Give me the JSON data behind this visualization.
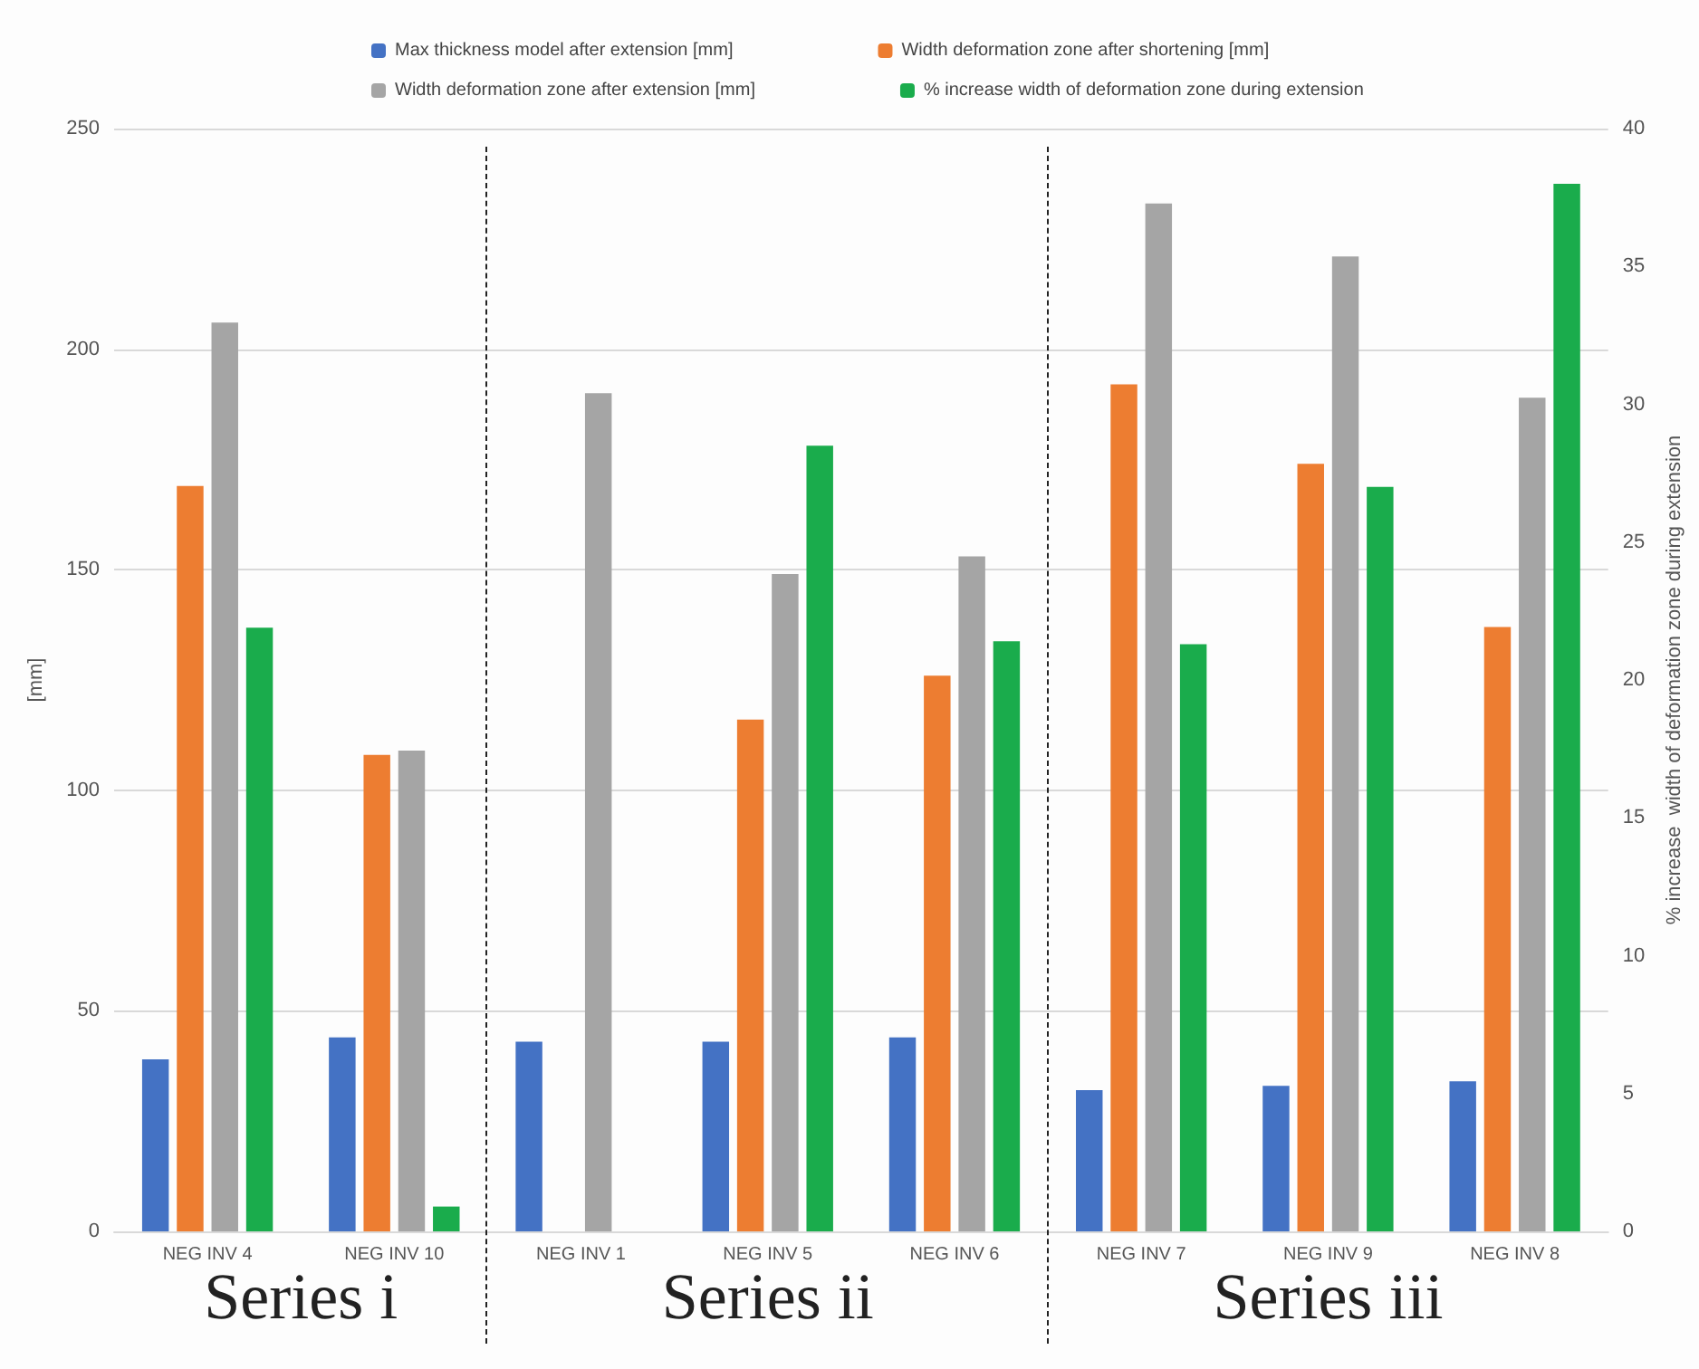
{
  "chart_data": {
    "type": "bar",
    "categories": [
      "NEG INV 4",
      "NEG INV 10",
      "NEG INV 1",
      "NEG INV 5",
      "NEG INV 6",
      "NEG INV 7",
      "NEG INV 9",
      "NEG INV 8"
    ],
    "series": [
      {
        "name": "Max thickness model after extension [mm]",
        "color": "#4472c4",
        "values": [
          39,
          44,
          43,
          43,
          44,
          32,
          33,
          34
        ]
      },
      {
        "name": "Width deformation zone after shortening [mm]",
        "color": "#ed7d31",
        "values": [
          169,
          108,
          null,
          116,
          126,
          192,
          174,
          137
        ]
      },
      {
        "name": "Width deformation zone after extension [mm]",
        "color": "#a5a5a5",
        "values": [
          206,
          109,
          190,
          149,
          153,
          233,
          221,
          189
        ]
      },
      {
        "name": "% increase width of deformation zone during extension",
        "color": "#1aac4c",
        "axis": "y2",
        "values": [
          21.9,
          0.9,
          null,
          28.5,
          21.4,
          21.3,
          27.0,
          38.0
        ]
      }
    ],
    "ylabel": "[mm]",
    "y2label": "% increase  width of deformation zone during extension",
    "ylim": [
      0,
      250
    ],
    "yticks": [
      0,
      50,
      100,
      150,
      200,
      250
    ],
    "y2lim": [
      0,
      40
    ],
    "y2ticks": [
      0,
      5,
      10,
      15,
      20,
      25,
      30,
      35,
      40
    ],
    "grid": "y",
    "legend": "top",
    "annotations": [
      "Series i",
      "Series ii",
      "Series iii"
    ]
  }
}
